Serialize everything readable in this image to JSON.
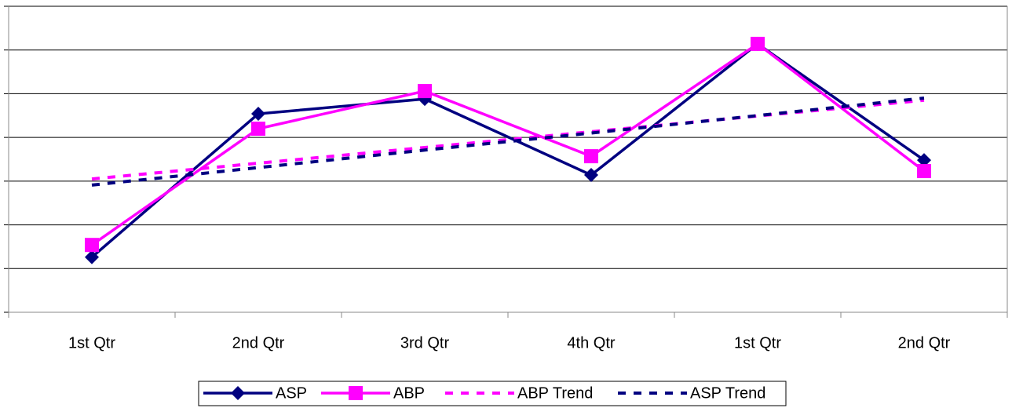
{
  "chart_data": {
    "type": "line",
    "categories": [
      "1st Qtr",
      "2nd Qtr",
      "3rd Qtr",
      "4th Qtr",
      "1st Qtr",
      "2nd Qtr"
    ],
    "series": [
      {
        "name": "ASP",
        "color": "#000080",
        "marker": "diamond",
        "dashed": false,
        "values": [
          1.26,
          4.54,
          4.88,
          3.14,
          6.14,
          3.48
        ]
      },
      {
        "name": "ABP",
        "color": "#ff00ff",
        "marker": "square",
        "dashed": false,
        "values": [
          1.54,
          4.2,
          5.06,
          3.57,
          6.14,
          3.23
        ]
      },
      {
        "name": "ABP Trend",
        "color": "#ff00ff",
        "marker": "none",
        "dashed": true,
        "values": [
          3.05,
          3.41,
          3.77,
          4.13,
          4.49,
          4.85
        ]
      },
      {
        "name": "ASP Trend",
        "color": "#000080",
        "marker": "none",
        "dashed": true,
        "values": [
          2.91,
          3.31,
          3.71,
          4.1,
          4.5,
          4.9
        ]
      }
    ],
    "ylim": [
      0,
      7
    ],
    "yticks": [
      0,
      1,
      2,
      3,
      4,
      5,
      6,
      7
    ],
    "grid": true,
    "legend": "bottom"
  }
}
